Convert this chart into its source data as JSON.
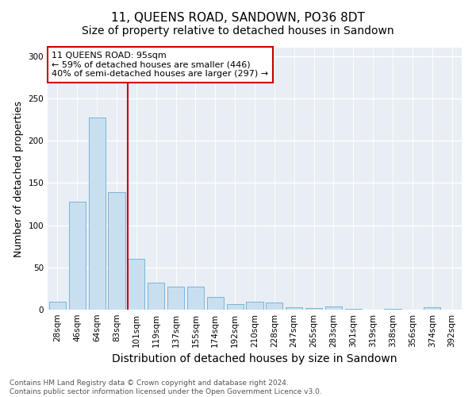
{
  "title": "11, QUEENS ROAD, SANDOWN, PO36 8DT",
  "subtitle": "Size of property relative to detached houses in Sandown",
  "xlabel": "Distribution of detached houses by size in Sandown",
  "ylabel": "Number of detached properties",
  "categories": [
    "28sqm",
    "46sqm",
    "64sqm",
    "83sqm",
    "101sqm",
    "119sqm",
    "137sqm",
    "155sqm",
    "174sqm",
    "192sqm",
    "210sqm",
    "228sqm",
    "247sqm",
    "265sqm",
    "283sqm",
    "301sqm",
    "319sqm",
    "338sqm",
    "356sqm",
    "374sqm",
    "392sqm"
  ],
  "values": [
    9,
    128,
    227,
    139,
    60,
    32,
    27,
    27,
    15,
    7,
    9,
    8,
    3,
    2,
    4,
    1,
    0,
    1,
    0,
    3,
    0
  ],
  "bar_color": "#c8dff0",
  "bar_edgecolor": "#7ab4d8",
  "redline_index": 4,
  "redline_color": "#cc0000",
  "annotation_text": "11 QUEENS ROAD: 95sqm\n← 59% of detached houses are smaller (446)\n40% of semi-detached houses are larger (297) →",
  "annotation_box_facecolor": "#ffffff",
  "annotation_box_edgecolor": "#cc0000",
  "ylim": [
    0,
    310
  ],
  "yticks": [
    0,
    50,
    100,
    150,
    200,
    250,
    300
  ],
  "bg_color": "#ffffff",
  "plot_bg_color": "#e8eef4",
  "title_fontsize": 11,
  "subtitle_fontsize": 10,
  "xlabel_fontsize": 10,
  "ylabel_fontsize": 9,
  "tick_fontsize": 7.5,
  "annotation_fontsize": 8,
  "footnote_fontsize": 6.5,
  "footnote": "Contains HM Land Registry data © Crown copyright and database right 2024.\nContains public sector information licensed under the Open Government Licence v3.0."
}
